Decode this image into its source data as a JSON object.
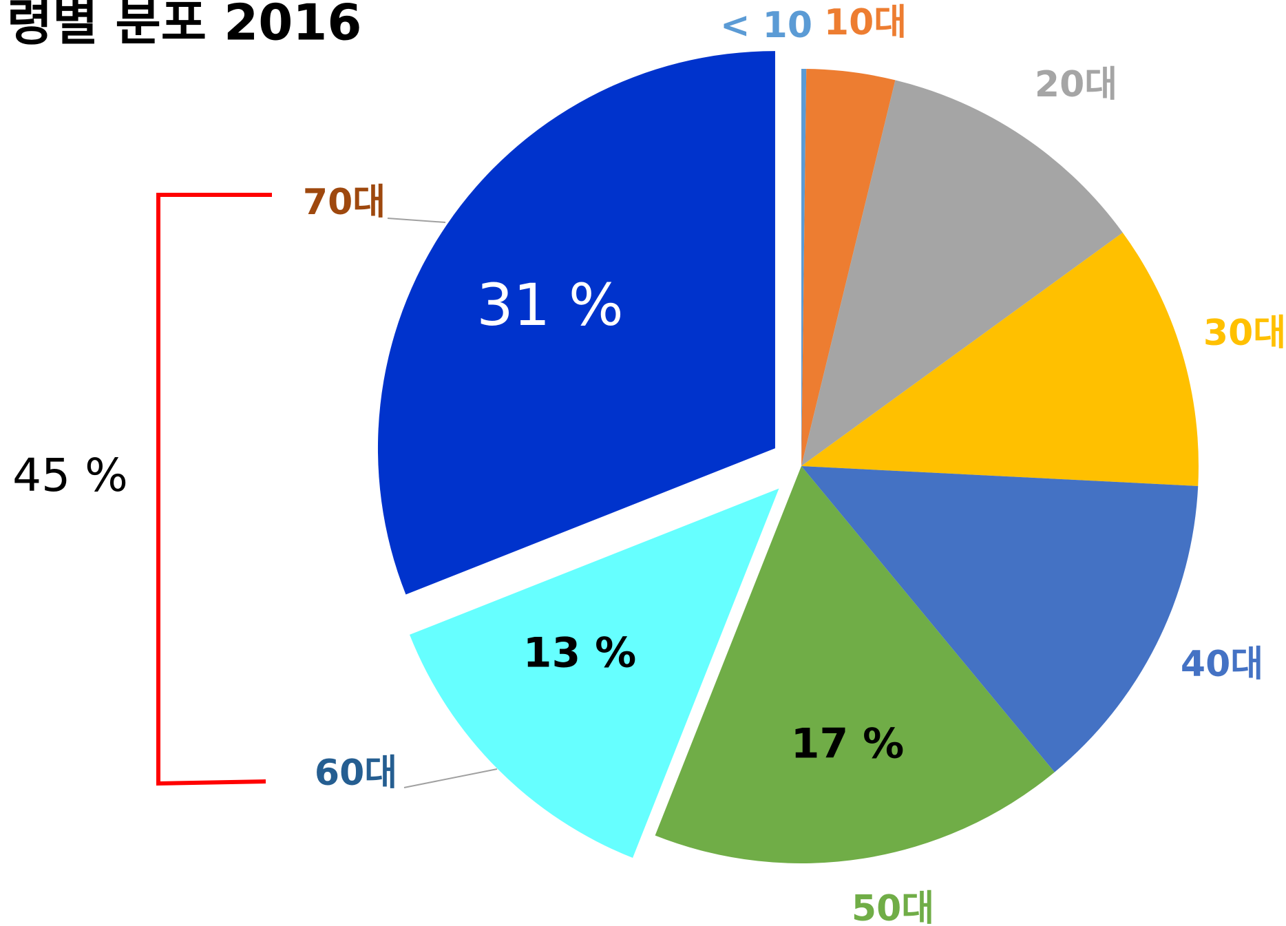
{
  "chart_data": {
    "type": "pie",
    "title": "령별 분포 2016",
    "categories": [
      "< 10",
      "10대",
      "20대",
      "30대",
      "40대",
      "50대",
      "60대",
      "70대"
    ],
    "values": [
      0.2,
      3.6,
      11.2,
      10.8,
      13.2,
      17,
      13,
      31
    ],
    "value_labels": [
      null,
      null,
      null,
      null,
      null,
      "17 %",
      "13 %",
      "31 %"
    ],
    "colors": [
      "#5b9bd5",
      "#ed7d31",
      "#a5a5a5",
      "#ffc000",
      "#4472c4",
      "#70ad47",
      "#66ffff",
      "#0033cc"
    ],
    "label_colors": [
      "#5b9bd5",
      "#ed7d31",
      "#a5a5a5",
      "#ffc000",
      "#4472c4",
      "#70ad47",
      "#255e91",
      "#9e480e"
    ],
    "value_label_colors": [
      null,
      null,
      null,
      null,
      null,
      "#000000",
      "#000000",
      "#ffffff"
    ],
    "explode": [
      false,
      false,
      false,
      false,
      false,
      false,
      true,
      true
    ],
    "annotation": "45 %"
  }
}
